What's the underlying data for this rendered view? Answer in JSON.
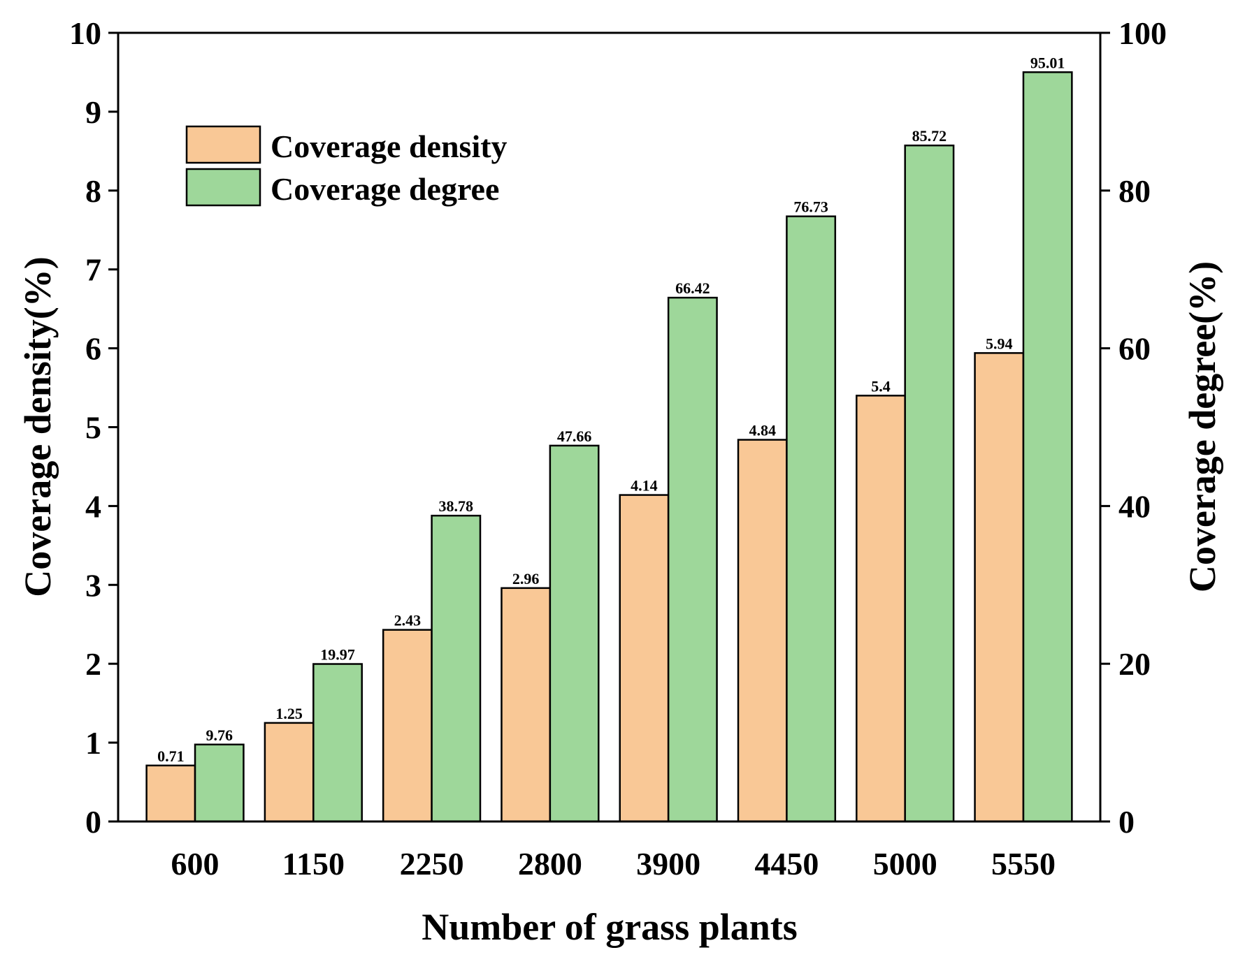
{
  "chart_data": {
    "type": "bar",
    "xlabel": "Number of grass plants",
    "ylabel": "Coverage density(%)",
    "ylabel_right": "Coverage degree(%)",
    "categories": [
      "600",
      "1150",
      "2250",
      "2800",
      "3900",
      "4450",
      "5000",
      "5550"
    ],
    "ylim": [
      0,
      10
    ],
    "ylim_right": [
      0,
      100
    ],
    "yticks": [
      "0",
      "1",
      "2",
      "3",
      "4",
      "5",
      "6",
      "7",
      "8",
      "9",
      "10"
    ],
    "yticks_right": [
      "0",
      "20",
      "40",
      "60",
      "80",
      "100"
    ],
    "series": [
      {
        "name": "Coverage density",
        "axis": "left",
        "color": "#F9C896",
        "values": [
          0.71,
          1.25,
          2.43,
          2.96,
          4.14,
          4.84,
          5.4,
          5.94
        ],
        "labels": [
          "0.71",
          "1.25",
          "2.43",
          "2.96",
          "4.14",
          "4.84",
          "5.4",
          "5.94"
        ]
      },
      {
        "name": "Coverage degree",
        "axis": "right",
        "color": "#9ED79A",
        "values": [
          9.76,
          19.97,
          38.78,
          47.66,
          66.42,
          76.73,
          85.72,
          95.01
        ],
        "labels": [
          "9.76",
          "19.97",
          "38.78",
          "47.66",
          "66.42",
          "76.73",
          "85.72",
          "95.01"
        ]
      }
    ],
    "legend": "top-left",
    "grid": false
  }
}
